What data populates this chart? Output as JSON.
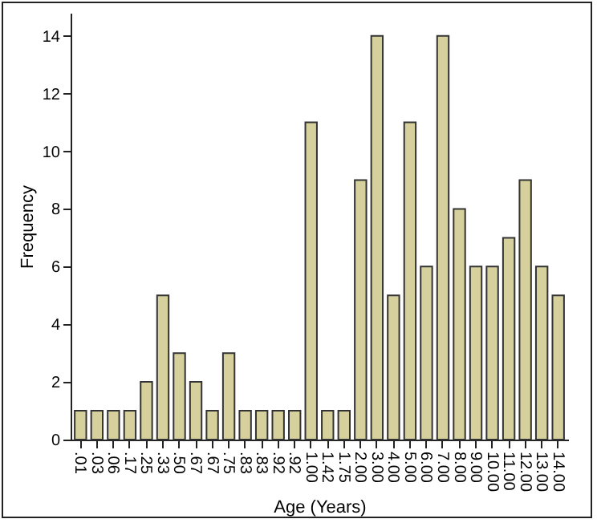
{
  "chart_data": {
    "type": "bar",
    "xlabel": "Age (Years)",
    "ylabel": "Frequency",
    "categories": [
      ".01",
      ".03",
      ".06",
      ".17",
      ".25",
      ".33",
      ".50",
      ".67",
      ".67",
      ".75",
      ".83",
      ".83",
      ".92",
      ".92",
      "1.00",
      "1.42",
      "1.75",
      "2.00",
      "3.00",
      "4.00",
      "5.00",
      "6.00",
      "7.00",
      "8.00",
      "9.00",
      "10.00",
      "11.00",
      "12.00",
      "13.00",
      "14.00"
    ],
    "values": [
      1,
      1,
      1,
      1,
      2,
      5,
      3,
      2,
      1,
      3,
      1,
      1,
      1,
      1,
      11,
      1,
      1,
      9,
      14,
      5,
      11,
      6,
      14,
      8,
      6,
      6,
      7,
      9,
      6,
      5
    ],
    "color": "#d6d19c",
    "ylim": [
      0,
      14.8
    ],
    "yticks": [
      0,
      2,
      4,
      6,
      8,
      10,
      12,
      14
    ],
    "grid": false
  }
}
